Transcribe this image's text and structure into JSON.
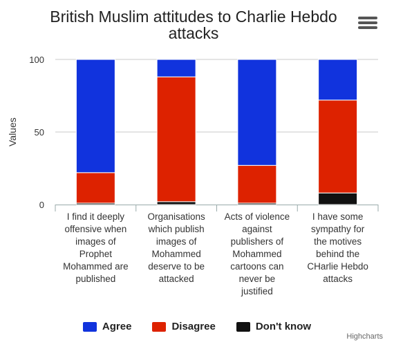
{
  "title": "British Muslim attitudes to Charlie Hebdo attacks",
  "credits": "Highcharts",
  "chart_data": {
    "type": "bar",
    "stacked": true,
    "title": "British Muslim attitudes to Charlie Hebdo attacks",
    "ylabel": "Values",
    "ylim": [
      0,
      100
    ],
    "yticks": [
      0,
      50,
      100
    ],
    "grid": true,
    "legend": "bottom-center",
    "categories": [
      "I find it deeply offensive when images of Prophet Mohammed are published",
      "Organisations which publish images of Mohammed deserve to be attacked",
      "Acts of violence against publishers of Mohammed cartoons can never be justified",
      "I have some sympathy for the motives behind the CHarlie Hebdo attacks"
    ],
    "category_lines": [
      [
        "I find it deeply",
        "offensive when",
        "images of",
        "Prophet",
        "Mohammed are",
        "published"
      ],
      [
        "Organisations",
        "which publish",
        "images of",
        "Mohammed",
        "deserve to be",
        "attacked"
      ],
      [
        "Acts of violence",
        "against",
        "publishers of",
        "Mohammed",
        "cartoons can",
        "never be",
        "justified"
      ],
      [
        "I have some",
        "sympathy for",
        "the motives",
        "behind the",
        "CHarlie Hebdo",
        "attacks"
      ]
    ],
    "series": [
      {
        "name": "Don't know",
        "color": "#111111",
        "values": [
          1,
          2,
          1,
          8
        ]
      },
      {
        "name": "Disagree",
        "color": "#dd2200",
        "values": [
          21,
          86,
          26,
          64
        ]
      },
      {
        "name": "Agree",
        "color": "#1133dd",
        "values": [
          78,
          12,
          73,
          28
        ]
      }
    ],
    "legend_order": [
      "Agree",
      "Disagree",
      "Don't know"
    ]
  }
}
